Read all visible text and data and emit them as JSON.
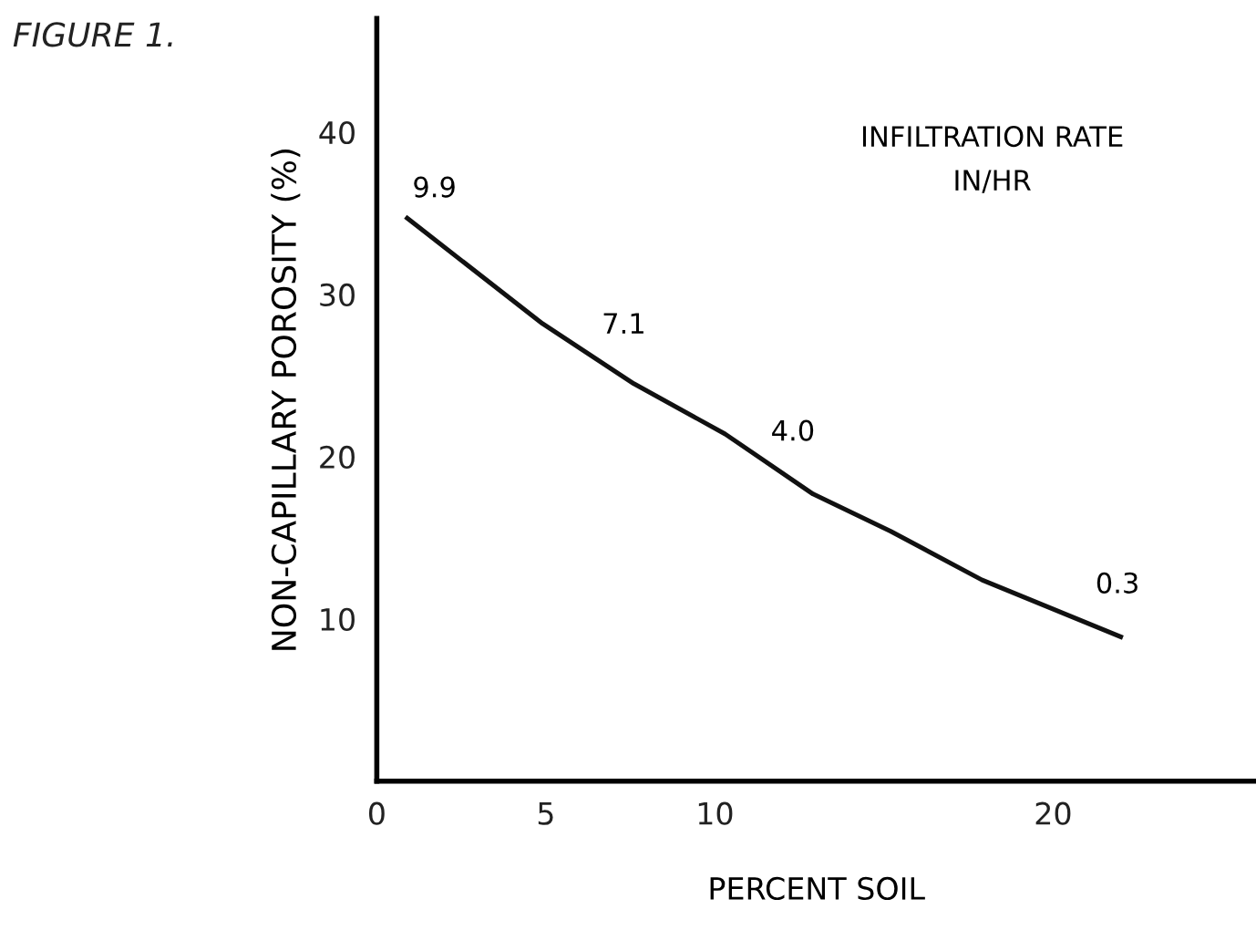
{
  "chart_data": {
    "type": "line",
    "title": "FIGURE 1.",
    "xlabel": "PERCENT SOIL",
    "ylabel": "NON-CAPILLARY POROSITY (%)",
    "x": [
      0.9,
      4.9,
      7.6,
      10.3,
      12.9,
      15.2,
      17.9,
      22.0
    ],
    "series": [
      {
        "color": "#111111",
        "values": [
          34.7,
          28.2,
          24.5,
          21.4,
          17.7,
          15.4,
          12.4,
          8.9
        ]
      }
    ],
    "xlim": [
      0,
      26
    ],
    "ylim": [
      0,
      47
    ],
    "xticks": [
      0,
      5,
      10,
      20
    ],
    "yticks": [
      10,
      20,
      30,
      40
    ],
    "annotations": [
      {
        "text": "9.9",
        "x": 0.9,
        "y": 34.7
      },
      {
        "text": "7.1",
        "x": 6.5,
        "y": 26.3
      },
      {
        "text": "4.0",
        "x": 11.5,
        "y": 19.7
      },
      {
        "text": "0.3",
        "x": 21.1,
        "y": 10.3
      },
      "INFILTRATION RATE\nIN/HR"
    ],
    "grid": false,
    "legend": false,
    "marker": "none",
    "line_style": "solid"
  }
}
